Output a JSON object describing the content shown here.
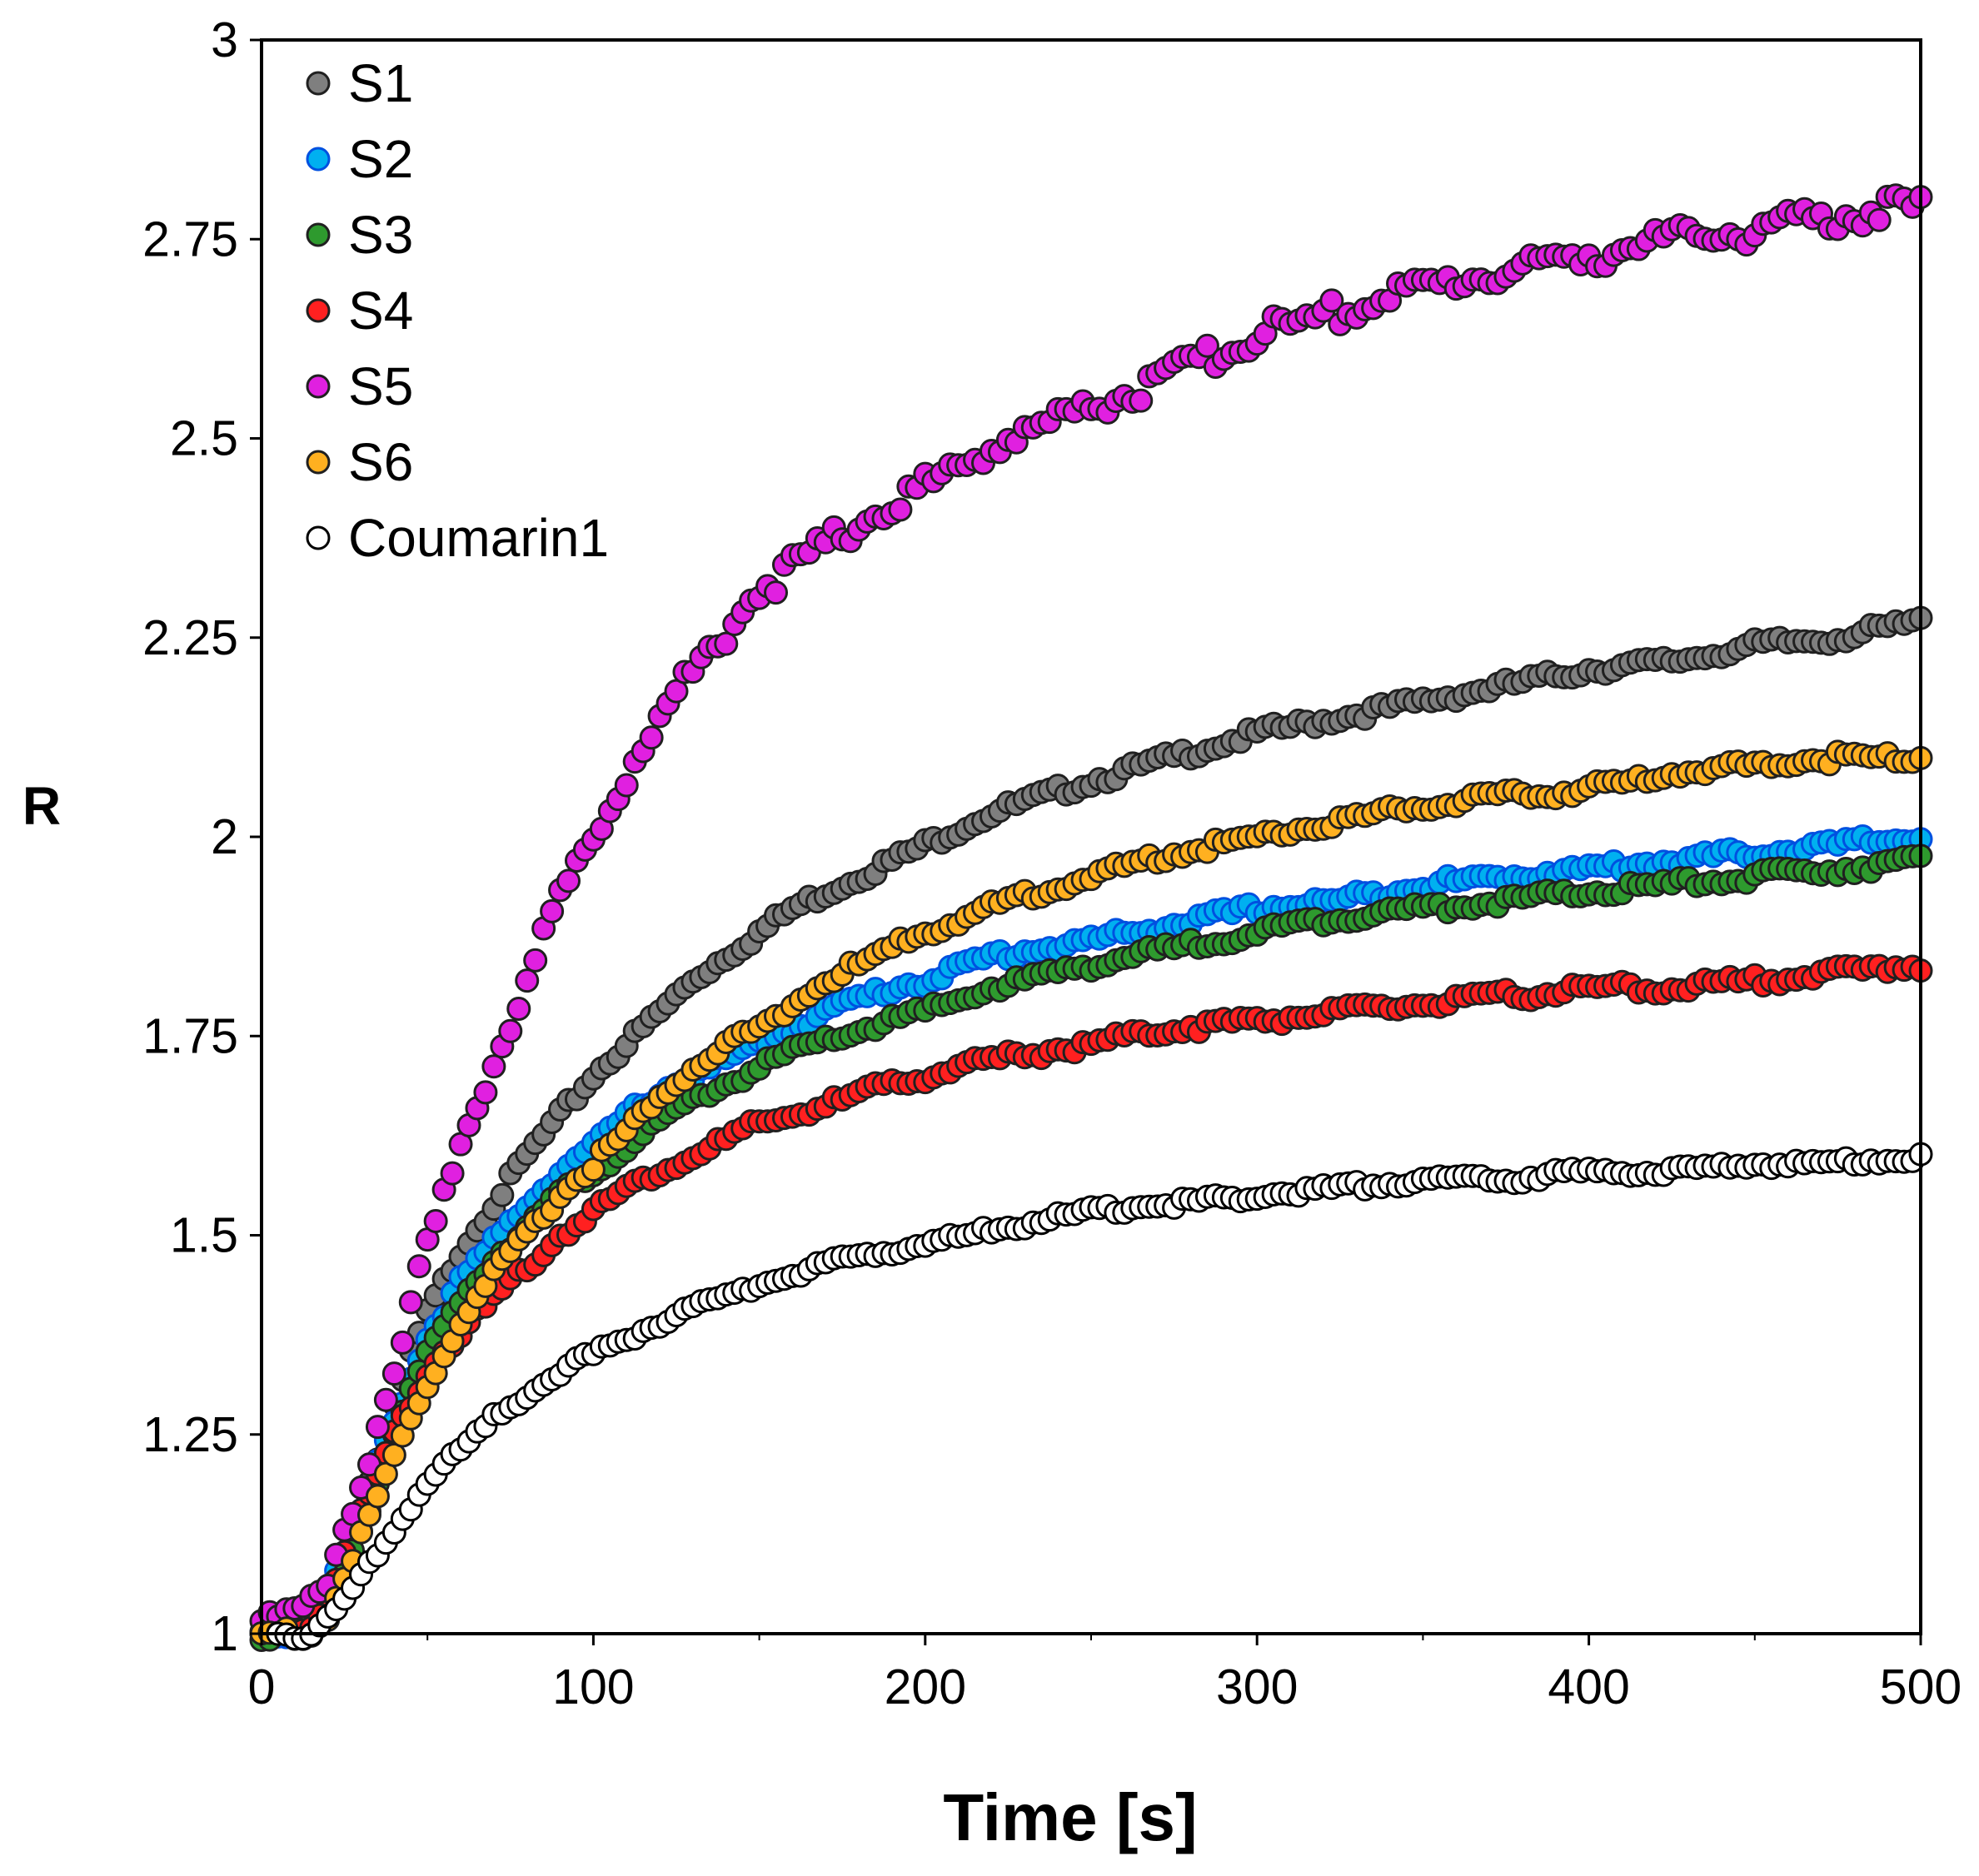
{
  "chart_data": {
    "type": "scatter",
    "title": "",
    "xlabel": "Time [s]",
    "ylabel": "R",
    "xlim": [
      0,
      500
    ],
    "ylim": [
      1,
      3
    ],
    "xticks": [
      "0",
      "100",
      "200",
      "300",
      "400",
      "500"
    ],
    "yticks": [
      "1",
      "1.25",
      "1.5",
      "1.75",
      "2",
      "2.25",
      "2.5",
      "2.75",
      "3"
    ],
    "grid": false,
    "legend_position": "top-left",
    "series": [
      {
        "name": "S1",
        "color": "#7f7f7f",
        "x": [
          0,
          10,
          15,
          20,
          25,
          30,
          35,
          40,
          45,
          50,
          55,
          60,
          70,
          80,
          90,
          100,
          110,
          120,
          130,
          140,
          150,
          160,
          175,
          190,
          200,
          220,
          250,
          275,
          300,
          325,
          350,
          375,
          400,
          425,
          450,
          475,
          500
        ],
        "y": [
          1.0,
          1.0,
          1.01,
          1.05,
          1.1,
          1.16,
          1.22,
          1.28,
          1.35,
          1.4,
          1.44,
          1.48,
          1.54,
          1.6,
          1.65,
          1.7,
          1.74,
          1.78,
          1.82,
          1.85,
          1.88,
          1.91,
          1.94,
          1.97,
          1.99,
          2.03,
          2.07,
          2.1,
          2.13,
          2.15,
          2.17,
          2.19,
          2.21,
          2.22,
          2.24,
          2.25,
          2.27
        ]
      },
      {
        "name": "S2",
        "color": "#00b0f0",
        "x": [
          0,
          10,
          15,
          20,
          25,
          30,
          35,
          40,
          45,
          50,
          60,
          70,
          80,
          90,
          100,
          110,
          120,
          130,
          140,
          150,
          160,
          175,
          190,
          200,
          220,
          250,
          275,
          300,
          325,
          350,
          375,
          400,
          425,
          450,
          475,
          500
        ],
        "y": [
          1.0,
          1.0,
          1.01,
          1.05,
          1.1,
          1.15,
          1.21,
          1.27,
          1.32,
          1.37,
          1.44,
          1.49,
          1.54,
          1.58,
          1.61,
          1.65,
          1.68,
          1.7,
          1.72,
          1.74,
          1.76,
          1.79,
          1.81,
          1.82,
          1.85,
          1.87,
          1.89,
          1.91,
          1.92,
          1.94,
          1.95,
          1.96,
          1.97,
          1.98,
          1.99,
          2.0
        ]
      },
      {
        "name": "S3",
        "color": "#2e9a2e",
        "x": [
          0,
          10,
          15,
          20,
          25,
          30,
          35,
          40,
          45,
          50,
          60,
          70,
          80,
          90,
          100,
          110,
          120,
          130,
          140,
          150,
          160,
          175,
          190,
          200,
          220,
          250,
          275,
          300,
          325,
          350,
          375,
          400,
          425,
          450,
          475,
          500
        ],
        "y": [
          1.0,
          1.0,
          1.01,
          1.04,
          1.08,
          1.13,
          1.19,
          1.25,
          1.3,
          1.35,
          1.42,
          1.47,
          1.51,
          1.55,
          1.58,
          1.61,
          1.64,
          1.67,
          1.69,
          1.71,
          1.73,
          1.75,
          1.77,
          1.78,
          1.81,
          1.84,
          1.86,
          1.88,
          1.9,
          1.91,
          1.92,
          1.93,
          1.94,
          1.95,
          1.96,
          1.97
        ]
      },
      {
        "name": "S4",
        "color": "#ff2020",
        "x": [
          0,
          10,
          15,
          20,
          25,
          30,
          35,
          40,
          45,
          50,
          60,
          70,
          80,
          90,
          100,
          110,
          120,
          130,
          140,
          150,
          160,
          175,
          190,
          200,
          220,
          250,
          275,
          300,
          325,
          350,
          375,
          400,
          425,
          450,
          475,
          500
        ],
        "y": [
          1.0,
          1.0,
          1.01,
          1.05,
          1.1,
          1.15,
          1.2,
          1.25,
          1.29,
          1.33,
          1.38,
          1.42,
          1.46,
          1.5,
          1.53,
          1.56,
          1.58,
          1.6,
          1.62,
          1.64,
          1.65,
          1.67,
          1.69,
          1.7,
          1.72,
          1.74,
          1.76,
          1.77,
          1.78,
          1.79,
          1.8,
          1.81,
          1.81,
          1.82,
          1.83,
          1.84
        ]
      },
      {
        "name": "S5",
        "color": "#e020e0",
        "x": [
          0,
          10,
          15,
          20,
          25,
          30,
          35,
          40,
          45,
          50,
          55,
          60,
          70,
          80,
          90,
          100,
          110,
          125,
          140,
          150,
          175,
          190,
          200,
          225,
          250,
          275,
          300,
          325,
          350,
          375,
          400,
          425,
          450,
          475,
          500
        ],
        "y": [
          1.03,
          1.03,
          1.03,
          1.06,
          1.12,
          1.19,
          1.27,
          1.34,
          1.41,
          1.48,
          1.54,
          1.6,
          1.72,
          1.82,
          1.92,
          2.0,
          2.08,
          2.18,
          2.26,
          2.31,
          2.38,
          2.42,
          2.44,
          2.5,
          2.54,
          2.58,
          2.63,
          2.66,
          2.69,
          2.71,
          2.73,
          2.75,
          2.76,
          2.78,
          2.79
        ]
      },
      {
        "name": "S6",
        "color": "#ffb020",
        "x": [
          0,
          10,
          15,
          20,
          25,
          30,
          35,
          40,
          45,
          50,
          60,
          70,
          80,
          90,
          100,
          110,
          120,
          130,
          140,
          150,
          160,
          175,
          190,
          200,
          225,
          250,
          275,
          300,
          325,
          350,
          375,
          400,
          425,
          450,
          475,
          500
        ],
        "y": [
          1.0,
          1.0,
          1.0,
          1.02,
          1.07,
          1.12,
          1.17,
          1.22,
          1.27,
          1.31,
          1.39,
          1.45,
          1.5,
          1.55,
          1.59,
          1.63,
          1.67,
          1.71,
          1.74,
          1.76,
          1.79,
          1.83,
          1.86,
          1.88,
          1.92,
          1.95,
          1.98,
          2.0,
          2.02,
          2.04,
          2.05,
          2.06,
          2.08,
          2.09,
          2.1,
          2.1
        ]
      },
      {
        "name": "Coumarin1",
        "color": "#ffffff",
        "x": [
          5,
          15,
          20,
          25,
          30,
          35,
          40,
          45,
          50,
          55,
          60,
          70,
          80,
          90,
          100,
          110,
          120,
          130,
          140,
          150,
          160,
          175,
          190,
          200,
          225,
          250,
          275,
          300,
          325,
          350,
          375,
          400,
          425,
          450,
          475,
          500
        ],
        "y": [
          1.0,
          1.0,
          1.02,
          1.04,
          1.07,
          1.1,
          1.13,
          1.16,
          1.19,
          1.21,
          1.23,
          1.27,
          1.3,
          1.33,
          1.35,
          1.37,
          1.39,
          1.41,
          1.42,
          1.44,
          1.45,
          1.47,
          1.48,
          1.49,
          1.51,
          1.53,
          1.54,
          1.55,
          1.56,
          1.57,
          1.57,
          1.58,
          1.58,
          1.59,
          1.59,
          1.6
        ]
      }
    ]
  }
}
